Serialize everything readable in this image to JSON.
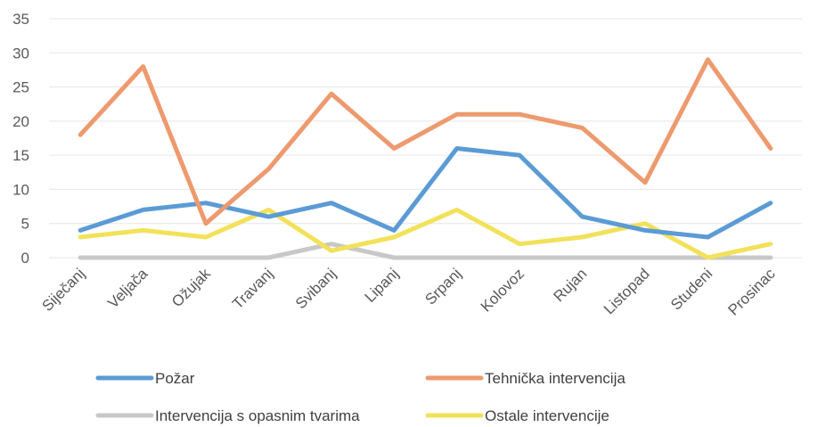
{
  "chart_data": {
    "type": "line",
    "title": "",
    "xlabel": "",
    "ylabel": "",
    "ylim": [
      0,
      35
    ],
    "yticks": [
      0,
      5,
      10,
      15,
      20,
      25,
      30,
      35
    ],
    "grid": "horizontal",
    "legend_position": "bottom",
    "categories": [
      "Siječanj",
      "Veljača",
      "Ožujak",
      "Travanj",
      "Svibanj",
      "Lipanj",
      "Srpanj",
      "Kolovoz",
      "Rujan",
      "Listopad",
      "Studeni",
      "Prosinac"
    ],
    "series": [
      {
        "name": "Požar",
        "color": "#5b9bd5",
        "values": [
          4,
          7,
          8,
          6,
          8,
          4,
          16,
          15,
          6,
          4,
          3,
          8
        ]
      },
      {
        "name": "Tehnička intervencija",
        "color": "#ed9a6e",
        "values": [
          18,
          28,
          5,
          13,
          24,
          16,
          21,
          21,
          19,
          11,
          29,
          16
        ]
      },
      {
        "name": "Intervencija s opasnim tvarima",
        "color": "#c8c8c8",
        "values": [
          0,
          0,
          0,
          0,
          2,
          0,
          0,
          0,
          0,
          0,
          0,
          0
        ]
      },
      {
        "name": "Ostale intervencije",
        "color": "#f2e15a",
        "values": [
          3,
          4,
          3,
          7,
          1,
          3,
          7,
          2,
          3,
          5,
          0,
          2
        ]
      }
    ]
  }
}
